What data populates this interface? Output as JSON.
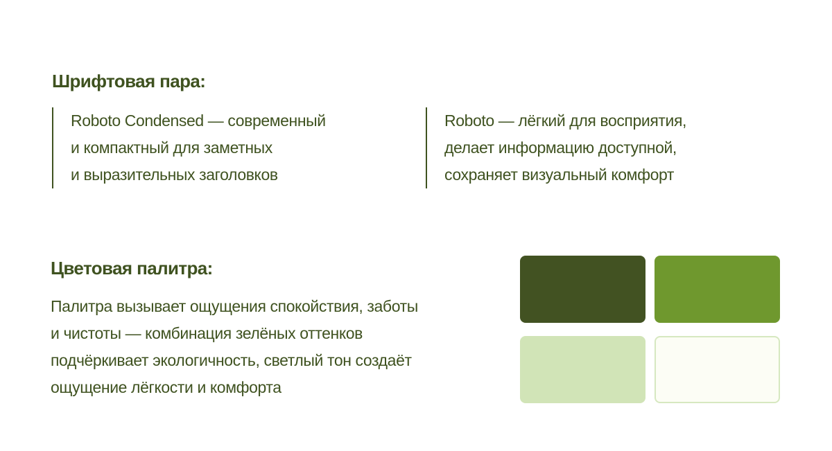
{
  "fonts": {
    "title": "Шрифтовая пара:",
    "left": [
      "Roboto Condensed — современный",
      "и компактный для заметных",
      "и выразительных заголовков"
    ],
    "right": [
      "Roboto — лёгкий для восприятия,",
      "делает информацию доступной,",
      "сохраняет визуальный комфорт"
    ]
  },
  "palette": {
    "title": "Цветовая палитра:",
    "text": [
      "Палитра вызывает ощущения спокойствия, заботы",
      "и чистоты — комбинация зелёных оттенков",
      "подчёркивает экологичность, светлый тон создаёт",
      "ощущение лёгкости и комфорта"
    ],
    "colors": [
      "#425222",
      "#6f982e",
      "#d1e4b7",
      "#fcfdf5"
    ],
    "light_border": "#d6e8c0"
  }
}
